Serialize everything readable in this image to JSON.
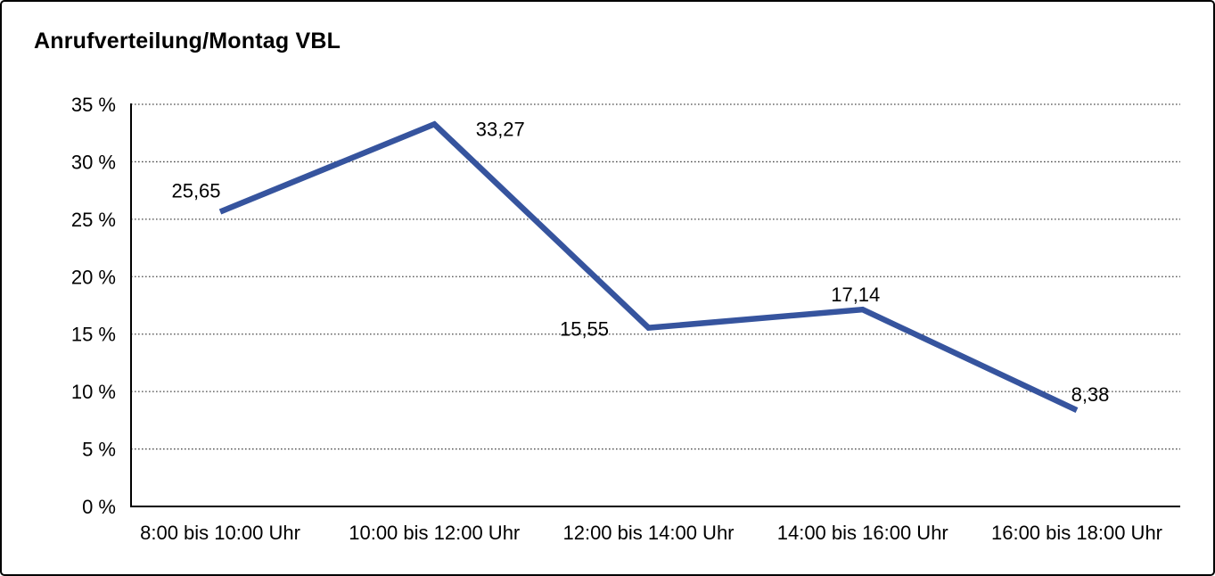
{
  "chart_data": {
    "type": "line",
    "title": "Anrufverteilung/Montag VBL",
    "categories": [
      "8:00 bis 10:00 Uhr",
      "10:00 bis 12:00 Uhr",
      "12:00 bis 14:00 Uhr",
      "14:00 bis 16:00 Uhr",
      "16:00 bis 18:00 Uhr"
    ],
    "values": [
      25.65,
      33.27,
      15.55,
      17.14,
      8.38
    ],
    "value_labels": [
      "25,65",
      "33,27",
      "15,55",
      "17,14",
      "8,38"
    ],
    "xlabel": "",
    "ylabel": "",
    "ylim": [
      0,
      35
    ],
    "ytick_step": 5,
    "ytick_labels": [
      "0 %",
      "5 %",
      "10 %",
      "15 %",
      "20 %",
      "25 %",
      "30 %",
      "35 %"
    ],
    "grid": "horizontal-dotted",
    "legend_position": "none",
    "line_color": "#36549E",
    "axis_color": "#000000",
    "background_color": "#ffffff"
  }
}
